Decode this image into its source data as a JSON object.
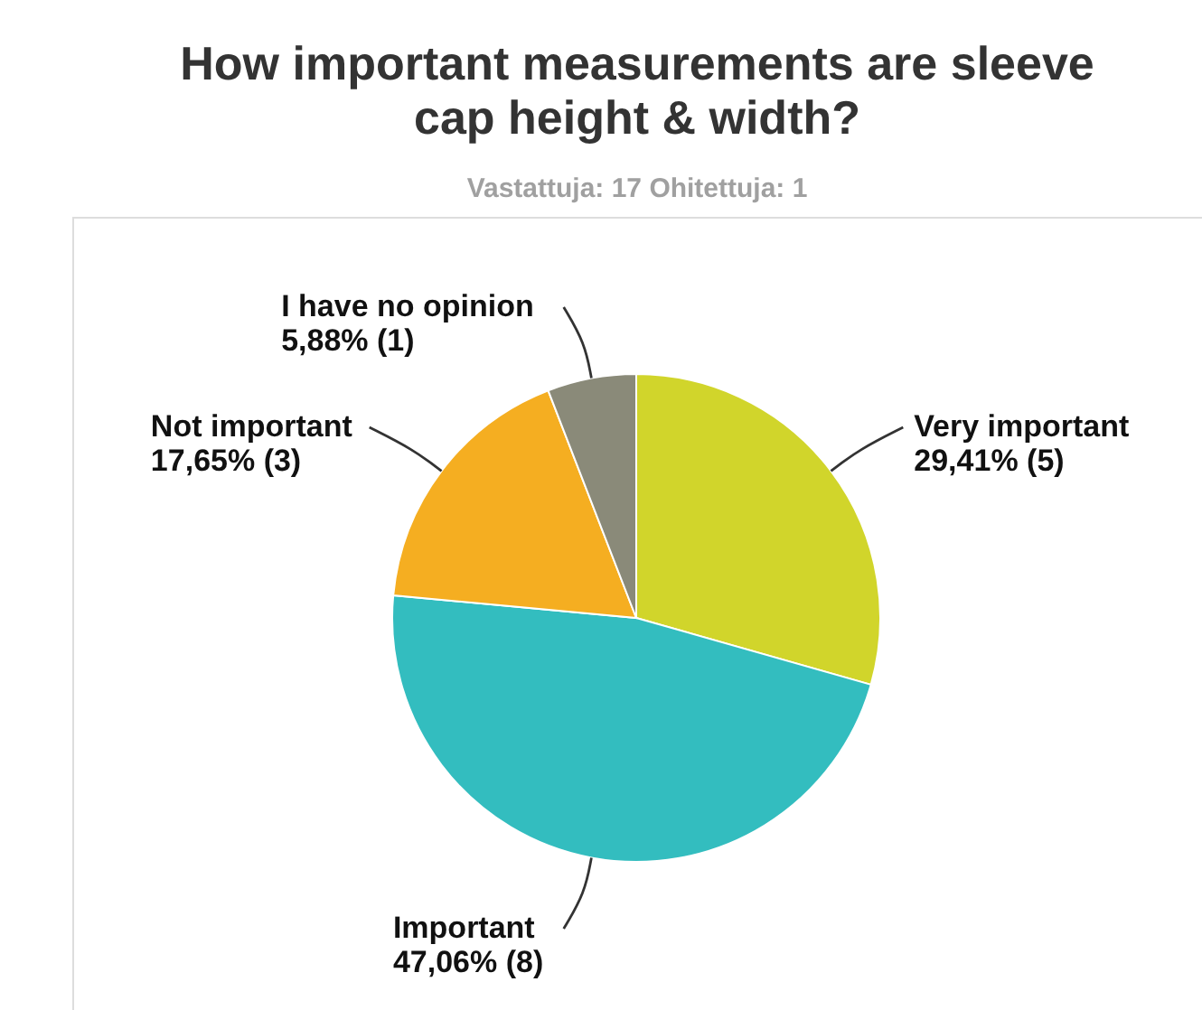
{
  "chart_data": {
    "type": "pie",
    "title": "How important measurements are sleeve cap height & width?",
    "subtitle": "Vastattuja: 17 Ohitettuja: 1",
    "categories": [
      "Very important",
      "Important",
      "Not important",
      "I have no opinion"
    ],
    "values": [
      29.41,
      47.06,
      17.65,
      5.88
    ],
    "colors": [
      "#d1d52b",
      "#33bdbf",
      "#f5ae21",
      "#8a8a79"
    ],
    "value_labels": [
      "29,41% (5)",
      "47,06% (8)",
      "17,65% (3)",
      "5,88% (1)"
    ]
  }
}
